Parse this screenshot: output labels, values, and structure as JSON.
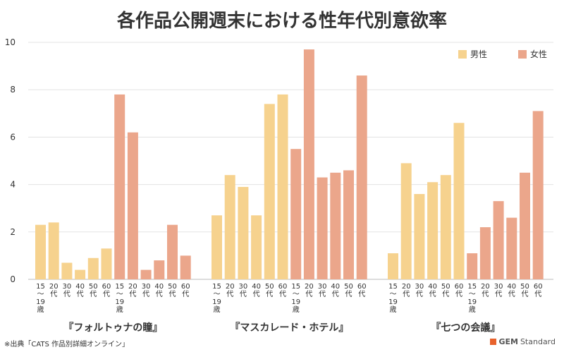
{
  "colors": {
    "male": "#F6D28E",
    "female": "#EBA68B",
    "grid": "#e3e3e3",
    "axis": "#bbbbbb",
    "text": "#333333"
  },
  "footer": {
    "source": "※出典「CATS 作品別詳細オンライン」"
  },
  "brand": {
    "name": "GEM",
    "suffix": "Standard"
  },
  "chart_data": {
    "type": "bar",
    "title": "各作品公開週末における性年代別意欲率",
    "xlabel": "",
    "ylabel": "",
    "ylim": [
      0,
      10
    ],
    "yticks": [
      "0",
      "2",
      "4",
      "6",
      "8",
      "10"
    ],
    "grid": true,
    "legend_position": "top-right",
    "legend": [
      {
        "label": "男性",
        "color_key": "male"
      },
      {
        "label": "女性",
        "color_key": "female"
      }
    ],
    "age_labels": [
      [
        "15",
        "～",
        "19",
        "歳"
      ],
      [
        "20",
        "代"
      ],
      [
        "30",
        "代"
      ],
      [
        "40",
        "代"
      ],
      [
        "50",
        "代"
      ],
      [
        "60",
        "代"
      ]
    ],
    "groups": [
      {
        "name": "『フォルトゥナの瞳』",
        "male": [
          2.3,
          2.4,
          0.7,
          0.4,
          0.9,
          1.3
        ],
        "female": [
          7.8,
          6.2,
          0.4,
          0.8,
          2.3,
          1.0
        ]
      },
      {
        "name": "『マスカレード・ホテル』",
        "male": [
          2.7,
          4.4,
          3.9,
          2.7,
          7.4,
          7.8
        ],
        "female": [
          5.5,
          9.7,
          4.3,
          4.5,
          4.6,
          8.6
        ]
      },
      {
        "name": "『七つの会議』",
        "male": [
          1.1,
          4.9,
          3.6,
          4.1,
          4.4,
          6.6
        ],
        "female": [
          1.1,
          2.2,
          3.3,
          2.6,
          4.5,
          7.1
        ]
      }
    ]
  }
}
